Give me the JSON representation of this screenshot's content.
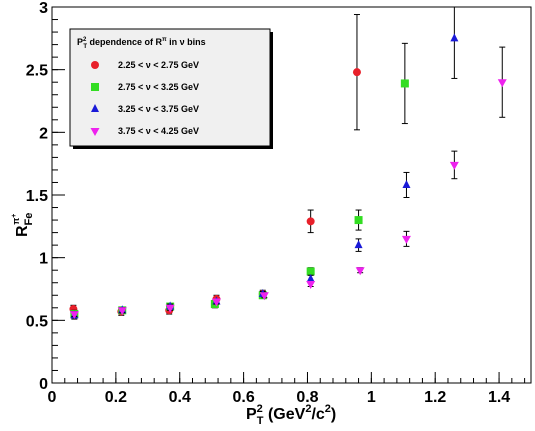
{
  "chart_data": {
    "type": "scatter",
    "title": "",
    "xlabel": "P_T^2 (GeV^2/c^2)",
    "ylabel": "R_Fe^π+",
    "xlim": [
      0,
      1.5
    ],
    "ylim": [
      0,
      3
    ],
    "x_ticks": [
      0,
      0.2,
      0.4,
      0.6,
      0.8,
      1,
      1.2,
      1.4
    ],
    "x_tick_labels": [
      "0",
      "0.2",
      "0.4",
      "0.6",
      "0.8",
      "1",
      "1.2",
      "1.4"
    ],
    "y_ticks": [
      0,
      0.5,
      1,
      1.5,
      2,
      2.5,
      3
    ],
    "y_tick_labels": [
      "0",
      "0.5",
      "1",
      "1.5",
      "2",
      "2.5",
      "3"
    ],
    "grid": false,
    "legend": {
      "title": "P_T^2 dependence of R^π in ν bins",
      "placement": "top-left"
    },
    "series": [
      {
        "name": "2.25 < ν < 2.75 GeV",
        "marker": "circle",
        "color": "#e8202a",
        "points": [
          {
            "x": 0.067,
            "y": 0.59,
            "err": 0.03
          },
          {
            "x": 0.217,
            "y": 0.57,
            "err": 0.03
          },
          {
            "x": 0.367,
            "y": 0.58,
            "err": 0.03
          },
          {
            "x": 0.515,
            "y": 0.67,
            "err": 0.03
          },
          {
            "x": 0.66,
            "y": 0.71,
            "err": 0.03
          },
          {
            "x": 0.81,
            "y": 1.29,
            "err": 0.09
          },
          {
            "x": 0.955,
            "y": 2.48,
            "err": 0.46
          }
        ]
      },
      {
        "name": "2.75 < ν < 3.25 GeV",
        "marker": "square",
        "color": "#33dd22",
        "points": [
          {
            "x": 0.07,
            "y": 0.55,
            "err": 0.03
          },
          {
            "x": 0.22,
            "y": 0.58,
            "err": 0.02
          },
          {
            "x": 0.37,
            "y": 0.61,
            "err": 0.02
          },
          {
            "x": 0.51,
            "y": 0.63,
            "err": 0.03
          },
          {
            "x": 0.66,
            "y": 0.7,
            "err": 0.02
          },
          {
            "x": 0.81,
            "y": 0.89,
            "err": 0.03
          },
          {
            "x": 0.96,
            "y": 1.3,
            "err": 0.08
          },
          {
            "x": 1.105,
            "y": 2.39,
            "err": 0.32
          }
        ]
      },
      {
        "name": "3.25 < ν < 3.75 GeV",
        "marker": "triangle-up",
        "color": "#1a1ad8",
        "points": [
          {
            "x": 0.07,
            "y": 0.54,
            "err": 0.03
          },
          {
            "x": 0.22,
            "y": 0.58,
            "err": 0.02
          },
          {
            "x": 0.37,
            "y": 0.61,
            "err": 0.02
          },
          {
            "x": 0.515,
            "y": 0.65,
            "err": 0.02
          },
          {
            "x": 0.66,
            "y": 0.71,
            "err": 0.02
          },
          {
            "x": 0.81,
            "y": 0.83,
            "err": 0.03
          },
          {
            "x": 0.96,
            "y": 1.1,
            "err": 0.05
          },
          {
            "x": 1.11,
            "y": 1.58,
            "err": 0.1
          },
          {
            "x": 1.26,
            "y": 2.75,
            "err": 0.32
          }
        ]
      },
      {
        "name": "3.75 < ν < 4.25 GeV",
        "marker": "triangle-down",
        "color": "#ee22ee",
        "points": [
          {
            "x": 0.07,
            "y": 0.55,
            "err": 0.02
          },
          {
            "x": 0.22,
            "y": 0.58,
            "err": 0.02
          },
          {
            "x": 0.37,
            "y": 0.6,
            "err": 0.02
          },
          {
            "x": 0.515,
            "y": 0.65,
            "err": 0.02
          },
          {
            "x": 0.665,
            "y": 0.7,
            "err": 0.02
          },
          {
            "x": 0.81,
            "y": 0.79,
            "err": 0.02
          },
          {
            "x": 0.965,
            "y": 0.9,
            "err": 0.02
          },
          {
            "x": 1.11,
            "y": 1.15,
            "err": 0.06
          },
          {
            "x": 1.26,
            "y": 1.74,
            "err": 0.11
          },
          {
            "x": 1.41,
            "y": 2.4,
            "err": 0.28
          }
        ]
      }
    ]
  }
}
